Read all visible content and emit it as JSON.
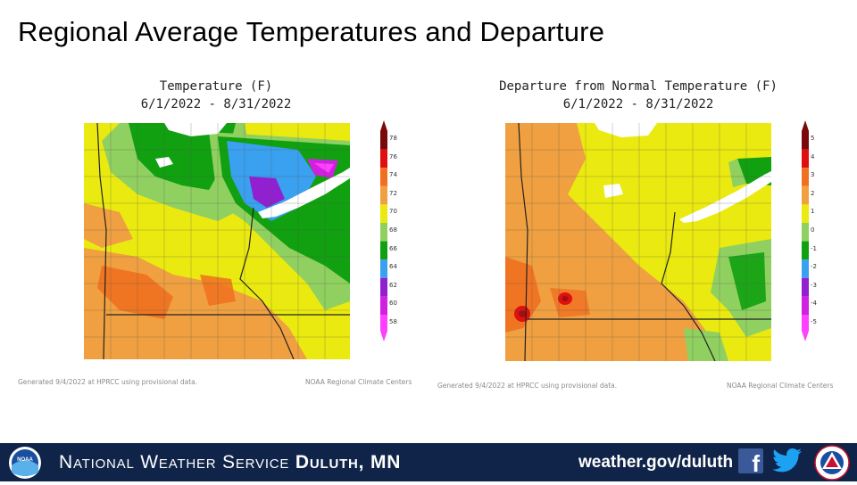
{
  "slide": {
    "title": "Regional Average Temperatures and Departure"
  },
  "maps": {
    "temperature": {
      "title_line1": "Temperature (F)",
      "title_line2": "6/1/2022 - 8/31/2022",
      "legend": {
        "values": [
          78,
          76,
          74,
          72,
          70,
          68,
          66,
          64,
          62,
          60,
          58
        ],
        "colors": [
          "#7a0a0a",
          "#e01010",
          "#f07020",
          "#f0a040",
          "#eaea10",
          "#90d060",
          "#10a010",
          "#3aa0f0",
          "#9020d0",
          "#d020e0",
          "#ff40ff"
        ]
      },
      "generated_note": "Generated 9/4/2022 at HPRCC using provisional data.",
      "credit": "NOAA Regional Climate Centers"
    },
    "departure": {
      "title_line1": "Departure from Normal Temperature (F)",
      "title_line2": "6/1/2022 - 8/31/2022",
      "legend": {
        "values": [
          5,
          4,
          3,
          2,
          1,
          0,
          -1,
          -2,
          -3,
          -4,
          -5
        ],
        "colors": [
          "#7a0a0a",
          "#e01010",
          "#f07020",
          "#f0a040",
          "#eaea10",
          "#90d060",
          "#10a010",
          "#3aa0f0",
          "#9020d0",
          "#d020e0",
          "#ff40ff"
        ]
      },
      "generated_note": "Generated 9/4/2022 at HPRCC using provisional data.",
      "credit": "NOAA Regional Climate Centers"
    }
  },
  "footer": {
    "agency": "National Weather Service",
    "office": "Duluth, MN",
    "url": "weather.gov/duluth",
    "logo_left_text": "NOAA",
    "background": "#0f2448",
    "icons": [
      "noaa-logo-icon",
      "facebook-icon",
      "twitter-icon",
      "nws-logo-icon"
    ]
  }
}
